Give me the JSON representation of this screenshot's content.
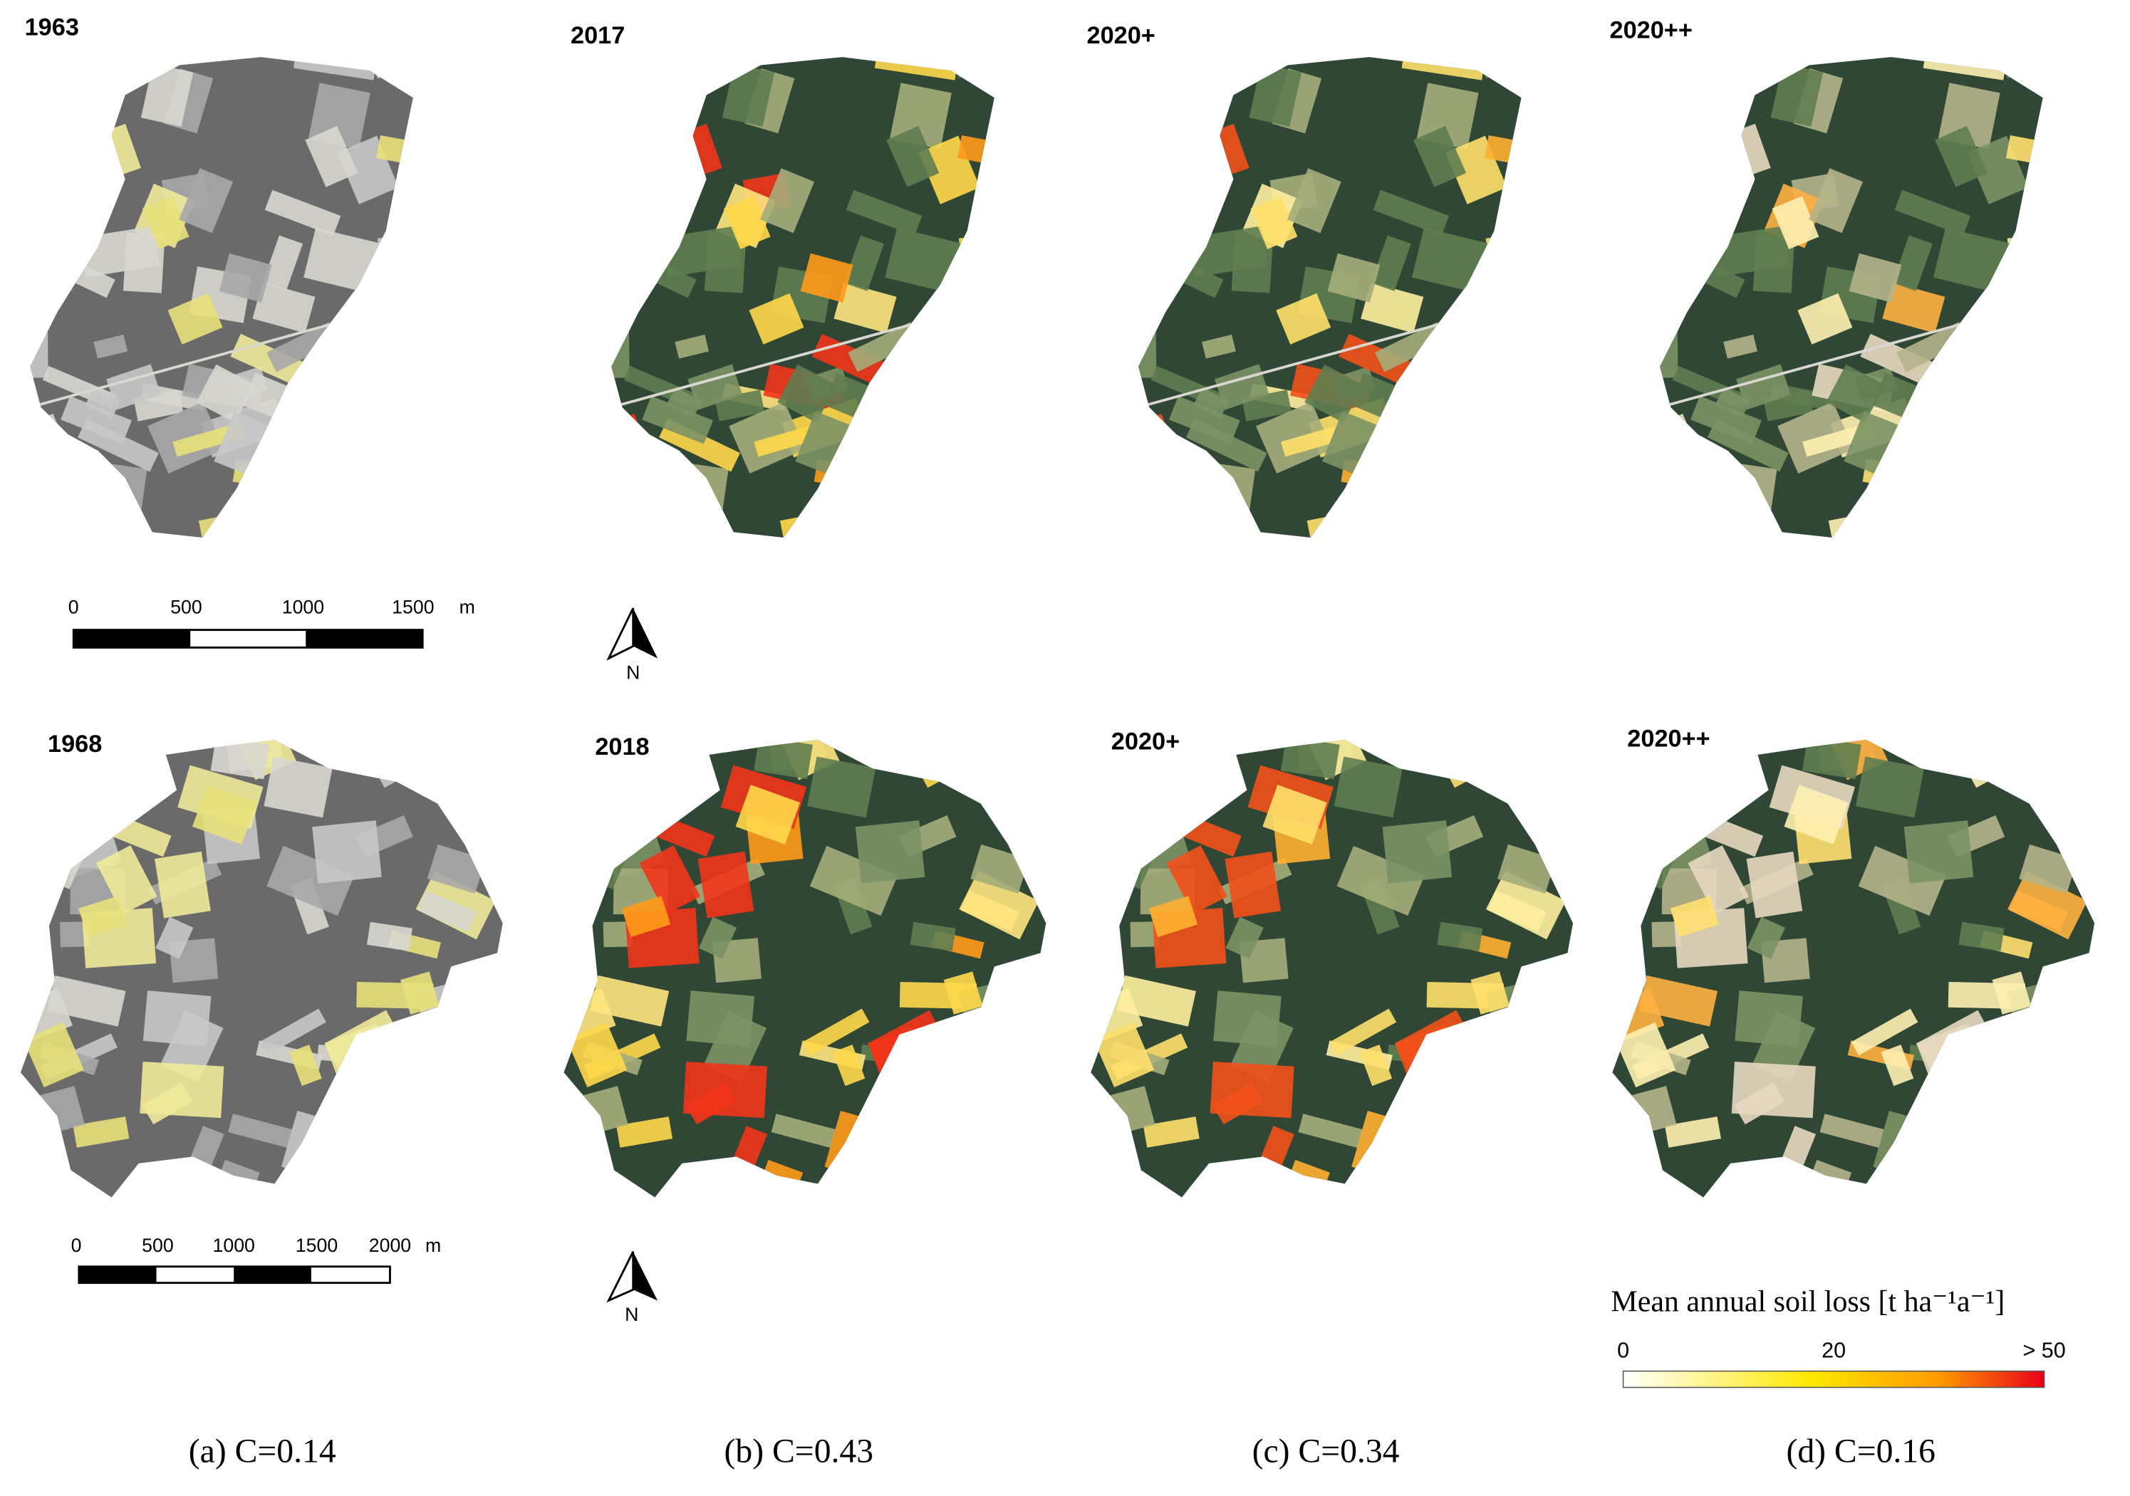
{
  "panels": [
    {
      "top_label": "1963",
      "bottom_label": "1968",
      "caption": "(a) C=0.14"
    },
    {
      "top_label": "2017",
      "bottom_label": "2018",
      "caption": "(b) C=0.43"
    },
    {
      "top_label": "2020+",
      "bottom_label": "2020+",
      "caption": "(c) C=0.34"
    },
    {
      "top_label": "2020++",
      "bottom_label": "2020++",
      "caption": "(d) C=0.16"
    }
  ],
  "scale_bars": [
    {
      "ticks": [
        "0",
        "500",
        "1000",
        "1500"
      ],
      "unit": "m"
    },
    {
      "ticks": [
        "0",
        "500",
        "1000",
        "1500",
        "2000"
      ],
      "unit": "m"
    }
  ],
  "north_arrows": [
    {
      "label": "N"
    },
    {
      "label": "N"
    }
  ],
  "legend": {
    "title": "Mean annual soil loss [t ha⁻¹a⁻¹]",
    "labels": [
      "0",
      "20",
      "> 50"
    ]
  }
}
